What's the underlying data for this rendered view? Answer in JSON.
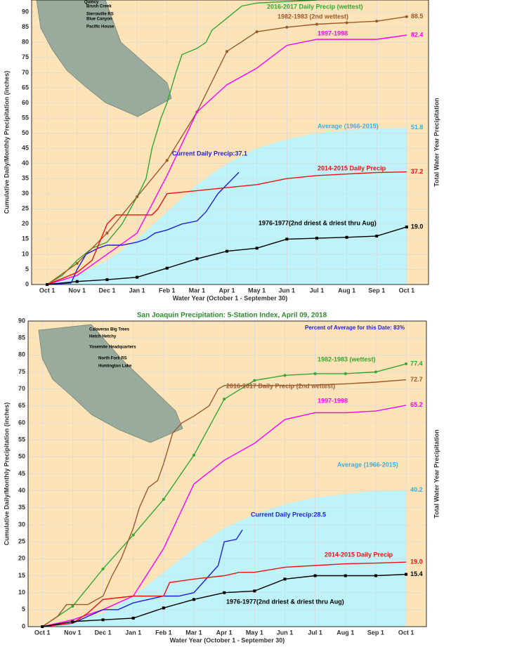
{
  "chart_data": [
    {
      "type": "line",
      "xlabel": "Water Year (October 1 - September 30)",
      "ylabel": "Cumulative Daily/Monthly Precipitation (inches)",
      "y2label": "Total Water Year Precipitation",
      "xlim": [
        -0.52,
        12.73
      ],
      "ylim": [
        0,
        94
      ],
      "grid": true,
      "xticks": [
        {
          "value": 0,
          "label": "Oct 1"
        },
        {
          "value": 1,
          "label": "Nov 1"
        },
        {
          "value": 2,
          "label": "Dec 1"
        },
        {
          "value": 3,
          "label": "Jan 1"
        },
        {
          "value": 4,
          "label": "Feb 1"
        },
        {
          "value": 5,
          "label": "Mar 1"
        },
        {
          "value": 6,
          "label": "Apr 1"
        },
        {
          "value": 7,
          "label": "May 1"
        },
        {
          "value": 8,
          "label": "Jun 1"
        },
        {
          "value": 9,
          "label": "Jul 1"
        },
        {
          "value": 10,
          "label": "Aug 1"
        },
        {
          "value": 11,
          "label": "Sep 1"
        },
        {
          "value": 12,
          "label": "Oct 1"
        }
      ],
      "yticks": [
        0,
        5,
        10,
        15,
        20,
        25,
        30,
        35,
        40,
        45,
        50,
        55,
        60,
        65,
        70,
        75,
        80,
        85,
        90
      ],
      "stations": [
        "Quincy",
        "Brush Creek",
        "Sierraville RS",
        "Blue Canyon",
        "Pacific House"
      ],
      "series": [
        {
          "name": "2016-2017 Daily Precip (wettest)",
          "color": "#34a634",
          "marker": null,
          "x": [
            0,
            0.5,
            1,
            1.5,
            2,
            2.5,
            3,
            3.3,
            3.5,
            3.8,
            4,
            4.3,
            4.5,
            5,
            5.3,
            5.5,
            6,
            6.5,
            7,
            8,
            9
          ],
          "values": [
            0,
            3,
            8,
            12,
            14,
            20,
            29,
            35,
            45,
            55,
            60,
            70,
            76,
            78,
            80,
            84,
            88,
            92,
            93,
            93.5,
            94
          ]
        },
        {
          "name": "1982-1983 (2nd wettest)",
          "color": "#9c5a2c",
          "marker": "circle",
          "total": 88.5,
          "x": [
            0,
            1,
            2,
            3,
            4,
            5,
            6,
            7,
            8,
            9,
            10,
            11,
            12
          ],
          "values": [
            0,
            7,
            17,
            29,
            41,
            57,
            77,
            83.5,
            85,
            86,
            86.5,
            87,
            88.5
          ]
        },
        {
          "name": "1997-1998",
          "color": "#ff00ff",
          "marker": null,
          "total": 82.4,
          "x": [
            0,
            1,
            2,
            3,
            4,
            5,
            6,
            7,
            8,
            9,
            10,
            11,
            12
          ],
          "values": [
            0,
            3,
            10,
            17,
            36,
            57,
            66,
            71.5,
            79,
            81,
            81,
            81,
            82.4
          ]
        },
        {
          "name": "Average (1966-2015)",
          "color": "#bdf3f9",
          "label_color": "#3ab0e0",
          "area": true,
          "total": 51.8,
          "x": [
            0,
            1,
            2,
            3,
            4,
            5,
            6,
            7,
            8,
            9,
            10,
            11,
            12
          ],
          "values": [
            0,
            3,
            8,
            15,
            24,
            33,
            40,
            45,
            48,
            50,
            51,
            51.5,
            51.8
          ]
        },
        {
          "name": "Current Daily Precip:37.1",
          "color": "#1f1fe0",
          "marker": null,
          "x": [
            0,
            0.8,
            1,
            1.3,
            1.7,
            2,
            2.5,
            3,
            3.3,
            3.6,
            4,
            4.5,
            5,
            5.3,
            5.7,
            6,
            6.4
          ],
          "values": [
            0,
            0.5,
            5,
            10,
            12,
            13,
            13,
            14,
            15,
            17,
            18,
            20,
            21,
            24,
            30,
            33,
            37.1
          ]
        },
        {
          "name": "2014-2015 Daily Precip",
          "color": "#ee1111",
          "marker": null,
          "total": 37.2,
          "x": [
            0,
            1,
            1.5,
            2,
            2.3,
            3,
            3.5,
            3.7,
            4,
            5,
            6,
            7,
            8,
            9,
            10,
            11,
            12
          ],
          "values": [
            0,
            4,
            8,
            20,
            23,
            23,
            23,
            25,
            30,
            31,
            32,
            33,
            35,
            36,
            36.5,
            37,
            37.2
          ]
        },
        {
          "name": "1976-1977(2nd driest & driest thru Aug)",
          "color": "#000000",
          "marker": "square",
          "total": {
            "value": 19,
            "label": "19.0"
          },
          "x": [
            0,
            1,
            2,
            3,
            4,
            5,
            6,
            7,
            8,
            9,
            10,
            11,
            12
          ],
          "values": [
            0,
            1,
            1.6,
            2.4,
            5.4,
            8.5,
            11,
            12,
            15,
            15.3,
            15.6,
            16,
            19
          ]
        }
      ]
    },
    {
      "type": "line",
      "title": "San Joaquin Precipitation: 5-Station Index, April 09, 2018",
      "annotation": "Percent of Average for this Date: 83%",
      "xlabel": "Water Year (October 1 - September 30)",
      "ylabel": "Cumulative Daily/Monthly Precipitation (inches)",
      "y2label": "Total Water Year Precipitation",
      "xlim": [
        -0.47,
        12.67
      ],
      "ylim": [
        0,
        90
      ],
      "grid": true,
      "xticks": [
        {
          "value": 0,
          "label": "Oct 1"
        },
        {
          "value": 1,
          "label": "Nov 1"
        },
        {
          "value": 2,
          "label": "Dec 1"
        },
        {
          "value": 3,
          "label": "Jan 1"
        },
        {
          "value": 4,
          "label": "Feb 1"
        },
        {
          "value": 5,
          "label": "Mar 1"
        },
        {
          "value": 6,
          "label": "Apr 1"
        },
        {
          "value": 7,
          "label": "May 1"
        },
        {
          "value": 8,
          "label": "Jun 1"
        },
        {
          "value": 9,
          "label": "Jul 1"
        },
        {
          "value": 10,
          "label": "Aug 1"
        },
        {
          "value": 11,
          "label": "Sep 1"
        },
        {
          "value": 12,
          "label": "Oct 1"
        }
      ],
      "yticks": [
        0,
        5,
        10,
        15,
        20,
        25,
        30,
        35,
        40,
        45,
        50,
        55,
        60,
        65,
        70,
        75,
        80,
        85,
        90
      ],
      "stations": [
        "Calaveras Big Trees",
        "Hetch Hetchy",
        "Yosemite Headquarters",
        "North Fork RS",
        "Huntington Lake"
      ],
      "series": [
        {
          "name": "1982-1983 (wettest)",
          "color": "#34a634",
          "marker": "circle",
          "total": 77.4,
          "x": [
            0,
            1,
            2,
            3,
            4,
            5,
            6,
            7,
            8,
            9,
            10,
            11,
            12
          ],
          "values": [
            0,
            6,
            17,
            27,
            37.5,
            50.5,
            67,
            72.5,
            74,
            74.5,
            74.5,
            75,
            77.4
          ]
        },
        {
          "name": "2016-2017 Daily Precip (2nd wettest)",
          "color": "#9c5a2c",
          "marker": null,
          "total": 72.7,
          "x": [
            0,
            0.5,
            0.8,
            1.5,
            2,
            2.3,
            2.6,
            3,
            3.2,
            3.5,
            3.8,
            4,
            4.3,
            4.6,
            5,
            5.5,
            5.8,
            6,
            7,
            8,
            9,
            10,
            11,
            12
          ],
          "values": [
            0,
            3,
            6.5,
            6.5,
            9,
            15,
            20,
            29,
            35,
            41,
            43,
            48,
            57,
            60,
            62,
            65,
            70,
            71,
            71,
            71,
            71.2,
            71.5,
            72,
            72.7
          ]
        },
        {
          "name": "1997-1998",
          "color": "#ff00ff",
          "marker": null,
          "total": 65.2,
          "x": [
            0,
            1,
            2,
            3,
            4,
            5,
            6,
            7,
            8,
            9,
            10,
            11,
            12
          ],
          "values": [
            0,
            2,
            5,
            9,
            23,
            42,
            49,
            54,
            61,
            63,
            63,
            63.5,
            65.2
          ]
        },
        {
          "name": "Average (1966-2015)",
          "color": "#bdf3f9",
          "label_color": "#3ab0e0",
          "area": true,
          "total": 40.2,
          "x": [
            0,
            1,
            2,
            3,
            4,
            5,
            6,
            7,
            8,
            9,
            10,
            11,
            12
          ],
          "values": [
            0,
            1.5,
            4,
            9,
            16,
            23,
            29,
            33,
            36,
            38,
            39,
            40,
            40.2
          ]
        },
        {
          "name": "Current Daily Precip:28.5",
          "color": "#1f1fe0",
          "marker": null,
          "x": [
            0,
            1,
            1.5,
            2,
            2.5,
            3,
            3.5,
            4,
            4.5,
            5,
            5.5,
            5.8,
            6,
            6.4,
            6.6
          ],
          "values": [
            0,
            1,
            3,
            5,
            5,
            7,
            8,
            9,
            9,
            10,
            15,
            18,
            25,
            25.7,
            28.5
          ]
        },
        {
          "name": "2014-2015 Daily Precip",
          "color": "#ee1111",
          "marker": null,
          "total": {
            "value": 19,
            "label": "19.0"
          },
          "x": [
            0,
            1,
            1.5,
            2,
            3,
            4,
            4.2,
            5,
            6,
            6.5,
            7,
            8,
            9,
            10,
            11,
            12
          ],
          "values": [
            0,
            1,
            4,
            8,
            9,
            9,
            13,
            14,
            15,
            16,
            16,
            17.5,
            18,
            18.5,
            18.7,
            19
          ]
        },
        {
          "name": "1976-1977(2nd driest & driest thru Aug)",
          "color": "#000000",
          "marker": "square",
          "total": 15.4,
          "x": [
            0,
            1,
            2,
            3,
            4,
            5,
            6,
            7,
            8,
            9,
            10,
            11,
            12
          ],
          "values": [
            0,
            1.5,
            2,
            2.5,
            5.5,
            8,
            10,
            10.5,
            14,
            15,
            15,
            15,
            15.4
          ]
        }
      ]
    }
  ]
}
